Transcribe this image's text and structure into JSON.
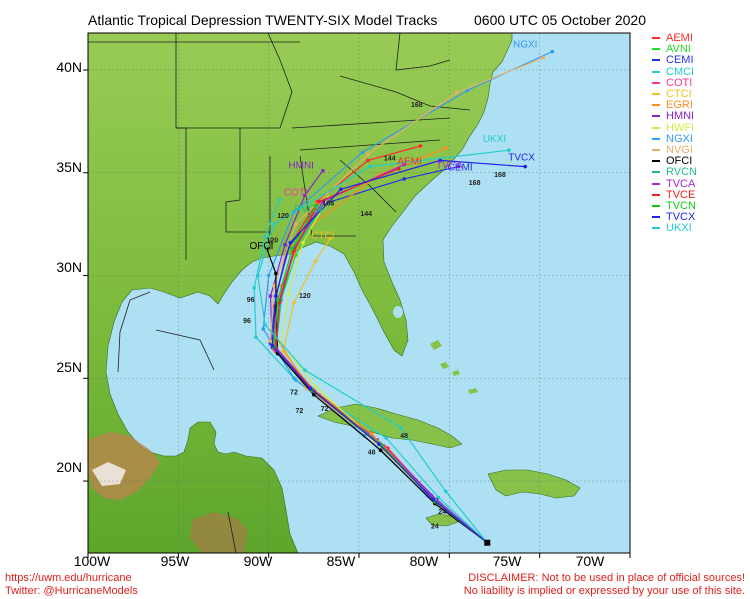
{
  "header": {
    "title": "Atlantic Tropical Depression TWENTY-SIX Model Tracks",
    "timestamp": "0600 UTC 05 October 2020"
  },
  "axes": {
    "lat_labels": [
      "40N",
      "35N",
      "30N",
      "25N",
      "20N"
    ],
    "lon_labels": [
      "100W",
      "95W",
      "90W",
      "85W",
      "80W",
      "75W",
      "70W"
    ]
  },
  "map_view": {
    "lon_range": [
      -100,
      -70
    ],
    "lat_range": [
      16.5,
      41.8
    ],
    "land_color": "#7cbc3c",
    "water_color": "#aee0f4"
  },
  "start_point": {
    "lat": 17.0,
    "lon": -77.9
  },
  "models": [
    {
      "name": "AEMI",
      "color": "#ff2a2a",
      "track": [
        [
          17.0,
          -77.9
        ],
        [
          19.0,
          -80.7
        ],
        [
          21.6,
          -83.4
        ],
        [
          24.2,
          -87.2
        ],
        [
          26.3,
          -89.6
        ],
        [
          28.5,
          -89.7
        ],
        [
          31.2,
          -89.0
        ],
        [
          33.6,
          -87.3
        ],
        [
          35.6,
          -84.5
        ],
        [
          36.3,
          -81.6
        ]
      ]
    },
    {
      "name": "AVNI",
      "color": "#22dd22",
      "track": [
        [
          17.0,
          -77.9
        ],
        [
          19.1,
          -80.9
        ],
        [
          21.8,
          -83.8
        ],
        [
          24.5,
          -87.7
        ],
        [
          26.5,
          -89.8
        ],
        [
          28.6,
          -89.4
        ],
        [
          31.0,
          -88.5
        ],
        [
          33.3,
          -87.1
        ]
      ]
    },
    {
      "name": "CEMI",
      "color": "#2233dd",
      "track": [
        [
          17.0,
          -77.9
        ],
        [
          19.3,
          -81.0
        ],
        [
          22.0,
          -84.0
        ],
        [
          24.6,
          -87.8
        ],
        [
          26.7,
          -89.9
        ],
        [
          29.0,
          -89.6
        ],
        [
          31.4,
          -88.9
        ],
        [
          33.5,
          -86.9
        ],
        [
          34.7,
          -82.5
        ],
        [
          35.3,
          -79.5
        ]
      ]
    },
    {
      "name": "CMCI",
      "color": "#22cccc",
      "track": [
        [
          17.0,
          -77.9
        ],
        [
          19.2,
          -80.6
        ],
        [
          22.1,
          -83.5
        ],
        [
          24.9,
          -88.5
        ],
        [
          27.0,
          -90.7
        ],
        [
          29.4,
          -90.8
        ],
        [
          31.9,
          -90.2
        ],
        [
          33.7,
          -89.4
        ]
      ]
    },
    {
      "name": "COTI",
      "color": "#ff3399",
      "track": [
        [
          17.0,
          -77.9
        ],
        [
          18.9,
          -80.5
        ],
        [
          21.7,
          -83.6
        ],
        [
          24.3,
          -87.4
        ],
        [
          26.4,
          -89.7
        ],
        [
          28.6,
          -89.6
        ],
        [
          31.1,
          -88.6
        ],
        [
          33.0,
          -87.6
        ]
      ]
    },
    {
      "name": "CTCI",
      "color": "#f2c020",
      "track": [
        [
          17.0,
          -77.9
        ],
        [
          19.0,
          -80.8
        ],
        [
          21.9,
          -84.1
        ],
        [
          24.4,
          -87.5
        ],
        [
          26.3,
          -89.2
        ],
        [
          28.7,
          -88.6
        ],
        [
          30.7,
          -87.4
        ],
        [
          31.8,
          -86.6
        ]
      ]
    },
    {
      "name": "EGRI",
      "color": "#ff8c1a",
      "track": [
        [
          17.0,
          -77.9
        ],
        [
          19.4,
          -81.2
        ],
        [
          22.3,
          -84.3
        ],
        [
          24.8,
          -88.0
        ],
        [
          27.0,
          -89.6
        ],
        [
          29.5,
          -89.3
        ],
        [
          32.2,
          -88.0
        ],
        [
          34.9,
          -83.9
        ],
        [
          36.2,
          -80.2
        ]
      ]
    },
    {
      "name": "HMNI",
      "color": "#8822cc",
      "track": [
        [
          17.0,
          -77.9
        ],
        [
          19.1,
          -80.7
        ],
        [
          21.7,
          -83.7
        ],
        [
          24.4,
          -87.6
        ],
        [
          26.5,
          -89.8
        ],
        [
          29.0,
          -89.9
        ],
        [
          31.5,
          -89.1
        ],
        [
          33.9,
          -88.0
        ],
        [
          35.1,
          -87.0
        ]
      ]
    },
    {
      "name": "HWFI",
      "color": "#ccee44",
      "track": [
        [
          17.0,
          -77.9
        ],
        [
          19.0,
          -80.9
        ],
        [
          21.8,
          -83.9
        ],
        [
          24.6,
          -87.4
        ],
        [
          26.7,
          -89.3
        ],
        [
          29.1,
          -88.9
        ],
        [
          31.6,
          -88.1
        ],
        [
          33.8,
          -86.7
        ]
      ]
    },
    {
      "name": "NGXI",
      "color": "#3399ee",
      "track": [
        [
          17.0,
          -77.9
        ],
        [
          19.3,
          -81.2
        ],
        [
          22.2,
          -84.7
        ],
        [
          25.0,
          -88.6
        ],
        [
          27.4,
          -90.3
        ],
        [
          30.0,
          -90.0
        ],
        [
          33.1,
          -88.6
        ],
        [
          36.0,
          -84.8
        ],
        [
          39.0,
          -79.0
        ],
        [
          40.9,
          -74.3
        ]
      ]
    },
    {
      "name": "NVGI",
      "color": "#e8b066",
      "track": [
        [
          17.0,
          -77.9
        ],
        [
          19.1,
          -80.8
        ],
        [
          21.9,
          -84.0
        ],
        [
          24.5,
          -87.9
        ],
        [
          26.8,
          -89.9
        ],
        [
          29.5,
          -89.7
        ],
        [
          32.5,
          -88.5
        ],
        [
          35.9,
          -84.5
        ],
        [
          38.9,
          -79.6
        ],
        [
          40.6,
          -74.8
        ]
      ]
    },
    {
      "name": "OFCI",
      "color": "#000000",
      "track": [
        [
          17.0,
          -77.9
        ],
        [
          18.9,
          -80.8
        ],
        [
          21.5,
          -83.8
        ],
        [
          24.2,
          -87.5
        ],
        [
          26.2,
          -89.5
        ],
        [
          28.5,
          -89.6
        ],
        [
          30.1,
          -89.6
        ],
        [
          31.3,
          -90.1
        ]
      ]
    },
    {
      "name": "RVCN",
      "color": "#22bb88",
      "track": [
        [
          17.0,
          -77.9
        ],
        [
          19.1,
          -80.8
        ],
        [
          21.8,
          -83.8
        ],
        [
          24.5,
          -87.6
        ],
        [
          26.5,
          -89.6
        ],
        [
          28.8,
          -89.3
        ],
        [
          31.2,
          -88.6
        ],
        [
          33.2,
          -87.2
        ]
      ]
    },
    {
      "name": "TVCA",
      "color": "#aa22dd",
      "track": [
        [
          17.0,
          -77.9
        ],
        [
          19.0,
          -80.7
        ],
        [
          21.7,
          -83.7
        ],
        [
          24.4,
          -87.5
        ],
        [
          26.5,
          -89.6
        ],
        [
          28.8,
          -89.4
        ],
        [
          31.3,
          -88.6
        ],
        [
          33.6,
          -87.0
        ],
        [
          35.4,
          -82.5
        ]
      ]
    },
    {
      "name": "TVCE",
      "color": "#ee2222",
      "track": [
        [
          17.0,
          -77.9
        ],
        [
          19.0,
          -80.8
        ],
        [
          21.7,
          -83.7
        ],
        [
          24.4,
          -87.5
        ],
        [
          26.4,
          -89.6
        ],
        [
          28.7,
          -89.4
        ],
        [
          31.2,
          -88.6
        ],
        [
          33.6,
          -87.2
        ],
        [
          35.2,
          -82.8
        ]
      ]
    },
    {
      "name": "TVCN",
      "color": "#11cc11",
      "track": [
        [
          17.0,
          -77.9
        ],
        [
          19.0,
          -80.8
        ],
        [
          21.7,
          -83.7
        ],
        [
          24.4,
          -87.6
        ],
        [
          26.5,
          -89.7
        ],
        [
          28.8,
          -89.5
        ],
        [
          31.3,
          -88.7
        ],
        [
          33.4,
          -87.4
        ]
      ]
    },
    {
      "name": "TVCX",
      "color": "#2222ee",
      "track": [
        [
          17.0,
          -77.9
        ],
        [
          19.1,
          -80.9
        ],
        [
          21.8,
          -83.9
        ],
        [
          24.5,
          -87.7
        ],
        [
          26.6,
          -89.8
        ],
        [
          29.0,
          -89.6
        ],
        [
          31.6,
          -88.8
        ],
        [
          34.2,
          -86.0
        ],
        [
          35.6,
          -80.5
        ],
        [
          35.3,
          -75.8
        ]
      ]
    },
    {
      "name": "UKXI",
      "color": "#22cccc",
      "track": [
        [
          17.0,
          -77.9
        ],
        [
          19.5,
          -80.2
        ],
        [
          22.6,
          -82.7
        ],
        [
          25.4,
          -88.0
        ],
        [
          27.6,
          -90.2
        ],
        [
          30.0,
          -90.6
        ],
        [
          32.5,
          -89.7
        ],
        [
          35.3,
          -84.4
        ],
        [
          36.1,
          -76.7
        ]
      ]
    }
  ],
  "track_labels": [
    {
      "text": "AEMI",
      "model": "AEMI",
      "lat": 35.4,
      "lon": -82.2
    },
    {
      "text": "HMNI",
      "model": "HMNI",
      "lat": 35.2,
      "lon": -88.2
    },
    {
      "text": "CEMI",
      "model": "CEMI",
      "lat": 35.1,
      "lon": -79.4
    },
    {
      "text": "TVCA",
      "model": "TVCA",
      "lat": 35.2,
      "lon": -80.0
    },
    {
      "text": "TVCX",
      "model": "TVCX",
      "lat": 35.6,
      "lon": -76.0
    },
    {
      "text": "UKXI",
      "model": "UKXI",
      "lat": 36.5,
      "lon": -77.5
    },
    {
      "text": "OFCI",
      "model": "OFCI",
      "lat": 31.3,
      "lon": -90.4
    },
    {
      "text": "CTCI",
      "model": "CTCI",
      "lat": 31.8,
      "lon": -87.0
    },
    {
      "text": "NGXI",
      "model": "NGXI",
      "lat": 41.1,
      "lon": -75.8
    },
    {
      "text": "COTI",
      "model": "COTI",
      "lat": 33.9,
      "lon": -88.5
    },
    {
      "text": "RVCN",
      "model": "RVCN",
      "lat": 33.1,
      "lon": -87.8
    }
  ],
  "hour_labels": [
    {
      "text": "24",
      "lat": 18.4,
      "lon": -80.4
    },
    {
      "text": "24",
      "lat": 17.7,
      "lon": -80.8
    },
    {
      "text": "48",
      "lat": 21.3,
      "lon": -84.3
    },
    {
      "text": "48",
      "lat": 22.1,
      "lon": -82.5
    },
    {
      "text": "72",
      "lat": 24.2,
      "lon": -88.6
    },
    {
      "text": "72",
      "lat": 23.3,
      "lon": -88.3
    },
    {
      "text": "72",
      "lat": 23.4,
      "lon": -86.9
    },
    {
      "text": "96",
      "lat": 28.7,
      "lon": -91.0
    },
    {
      "text": "96",
      "lat": 27.7,
      "lon": -91.2
    },
    {
      "text": "120",
      "lat": 28.9,
      "lon": -88.0
    },
    {
      "text": "120",
      "lat": 32.8,
      "lon": -89.2
    },
    {
      "text": "120",
      "lat": 31.6,
      "lon": -89.8
    },
    {
      "text": "144",
      "lat": 35.6,
      "lon": -83.3
    },
    {
      "text": "144",
      "lat": 32.9,
      "lon": -84.6
    },
    {
      "text": "168",
      "lat": 33.4,
      "lon": -86.7
    },
    {
      "text": "168",
      "lat": 34.4,
      "lon": -78.6
    },
    {
      "text": "168",
      "lat": 38.2,
      "lon": -81.8
    },
    {
      "text": "168",
      "lat": 34.8,
      "lon": -77.2
    }
  ],
  "footer": {
    "left_line1": "https://uwm.edu/hurricane",
    "left_line2": "Twitter: @HurricaneModels",
    "right_line1": "DISCLAIMER: Not to be used in place of official sources!",
    "right_line2": "No liability is implied or expressed by your use of this site."
  }
}
